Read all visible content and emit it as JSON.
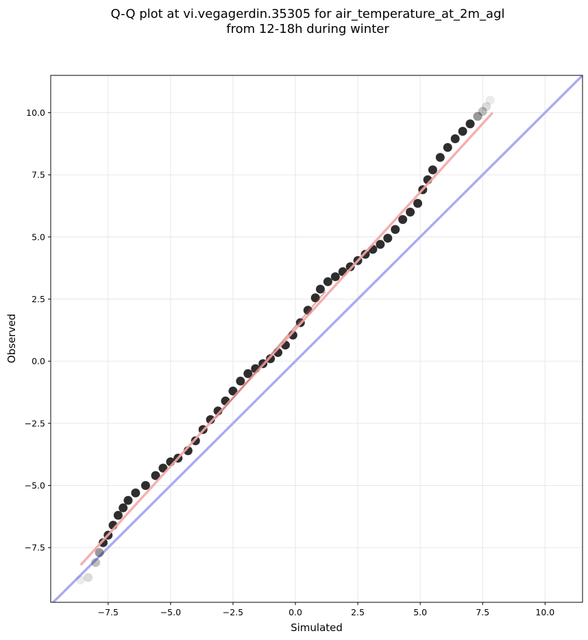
{
  "chart_data": {
    "type": "scatter",
    "title": "Q-Q plot at vi.vegagerdin.35305 for air_temperature_at_2m_agl",
    "subtitle": "from 12-18h during winter",
    "xlabel": "Simulated",
    "ylabel": "Observed",
    "xlim": [
      -9.8,
      11.5
    ],
    "ylim": [
      -9.7,
      11.5
    ],
    "xticks": [
      -7.5,
      -5.0,
      -2.5,
      0.0,
      2.5,
      5.0,
      7.5,
      10.0
    ],
    "yticks": [
      -7.5,
      -5.0,
      -2.5,
      0.0,
      2.5,
      5.0,
      7.5,
      10.0
    ],
    "xtick_labels": [
      "−7.5",
      "−5.0",
      "−2.5",
      "0.0",
      "2.5",
      "5.0",
      "7.5",
      "10.0"
    ],
    "ytick_labels": [
      "−7.5",
      "−5.0",
      "−2.5",
      "0.0",
      "2.5",
      "5.0",
      "7.5",
      "10.0"
    ],
    "grid": true,
    "quantiles": {
      "x": [
        -8.6,
        -8.3,
        -8.0,
        -7.85,
        -7.7,
        -7.5,
        -7.3,
        -7.1,
        -6.9,
        -6.7,
        -6.4,
        -6.0,
        -5.6,
        -5.3,
        -5.0,
        -4.7,
        -4.3,
        -4.0,
        -3.7,
        -3.4,
        -3.1,
        -2.8,
        -2.5,
        -2.2,
        -1.9,
        -1.6,
        -1.3,
        -1.0,
        -0.7,
        -0.4,
        -0.1,
        0.2,
        0.5,
        0.8,
        1.0,
        1.3,
        1.6,
        1.9,
        2.2,
        2.5,
        2.8,
        3.1,
        3.4,
        3.7,
        4.0,
        4.3,
        4.6,
        4.9,
        5.1,
        5.3,
        5.5,
        5.8,
        6.1,
        6.4,
        6.7,
        7.0,
        7.3,
        7.5,
        7.65,
        7.8
      ],
      "y": [
        -8.8,
        -8.7,
        -8.1,
        -7.7,
        -7.3,
        -7.0,
        -6.6,
        -6.2,
        -5.9,
        -5.6,
        -5.3,
        -5.0,
        -4.6,
        -4.3,
        -4.05,
        -3.9,
        -3.6,
        -3.2,
        -2.75,
        -2.35,
        -2.0,
        -1.6,
        -1.2,
        -0.8,
        -0.5,
        -0.3,
        -0.1,
        0.1,
        0.35,
        0.65,
        1.05,
        1.55,
        2.05,
        2.55,
        2.9,
        3.2,
        3.4,
        3.6,
        3.8,
        4.05,
        4.3,
        4.5,
        4.7,
        4.95,
        5.3,
        5.7,
        6.0,
        6.35,
        6.9,
        7.3,
        7.7,
        8.2,
        8.6,
        8.95,
        9.25,
        9.55,
        9.85,
        10.05,
        10.25,
        10.5
      ]
    },
    "reference_line": {
      "x": [
        -9.8,
        11.5
      ],
      "y": [
        -9.8,
        11.5
      ],
      "color": "#aaaaf2"
    },
    "fit_line": {
      "x": [
        -8.6,
        7.9
      ],
      "y": [
        -8.2,
        10.0
      ],
      "color": "#f4a6a6"
    },
    "colors": {
      "points": "#000000",
      "points_fit_overlay": "#b05050",
      "grid": "#e6e6e6"
    }
  }
}
